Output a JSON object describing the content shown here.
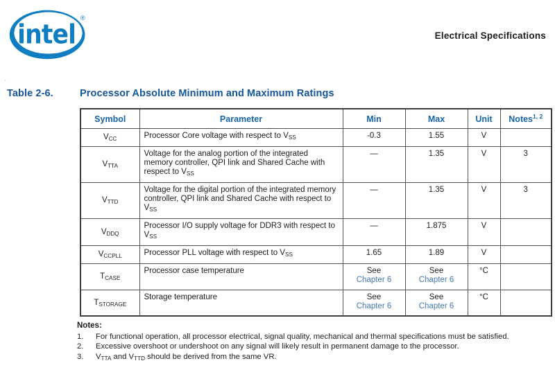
{
  "header": {
    "logo": {
      "text": "intel",
      "registered": "®",
      "color": "#0F7DC2"
    },
    "section_title": "Electrical Specifications",
    "stray_mark": "."
  },
  "table_title": {
    "label": "Table 2-6.",
    "text": "Processor Absolute Minimum and Maximum Ratings",
    "color": "#15569B"
  },
  "table": {
    "columns": [
      "Symbol",
      "Parameter",
      "Min",
      "Max",
      "Unit",
      "Notes"
    ],
    "notes_superscript": "1, 2",
    "header_color": "#1564A8",
    "link_color": "#4278AE",
    "rows": [
      {
        "symbol": "V~CC~",
        "parameter": "Processor Core voltage with respect to V~SS~",
        "min": "-0.3",
        "max": "1.55",
        "unit": "V",
        "notes": ""
      },
      {
        "symbol": "V~TTA~",
        "parameter": "Voltage for the analog portion of the integrated memory controller, QPI link and Shared Cache with respect to V~SS~",
        "min": "—",
        "max": "1.35",
        "unit": "V",
        "notes": "3"
      },
      {
        "symbol": "V~TTD~",
        "parameter": "Voltage for the digital portion of the integrated memory controller, QPI link and Shared Cache with respect to V~SS~",
        "min": "—",
        "max": "1.35",
        "unit": "V",
        "notes": "3"
      },
      {
        "symbol": "V~DDQ~",
        "parameter": "Processor I/O supply voltage for DDR3 with respect to V~SS~",
        "min": "—",
        "max": "1.875",
        "unit": "V",
        "notes": ""
      },
      {
        "symbol": "V~CCPLL~",
        "parameter": "Processor PLL voltage with respect to V~SS~",
        "min": "1.65",
        "max": "1.89",
        "unit": "V",
        "notes": ""
      },
      {
        "symbol": "T~CASE~",
        "parameter": "Processor case temperature",
        "min": "See\n[[Chapter 6]]",
        "max": "See\n[[Chapter 6]]",
        "unit": "°C",
        "notes": ""
      },
      {
        "symbol": "T~STORAGE~",
        "parameter": "Storage temperature",
        "min": "See\n[[Chapter 6]]",
        "max": "See\n[[Chapter 6]]",
        "unit": "°C",
        "notes": ""
      }
    ]
  },
  "notes": {
    "heading": "Notes:",
    "items": [
      {
        "num": "1.",
        "text": "For functional operation, all processor electrical, signal quality, mechanical and thermal specifications must be satisfied."
      },
      {
        "num": "2.",
        "text": "Excessive overshoot or undershoot on any signal will likely result in permanent damage to the processor."
      },
      {
        "num": "3.",
        "text": "V~TTA~ and V~TTD~ should be derived from the same VR."
      }
    ]
  }
}
